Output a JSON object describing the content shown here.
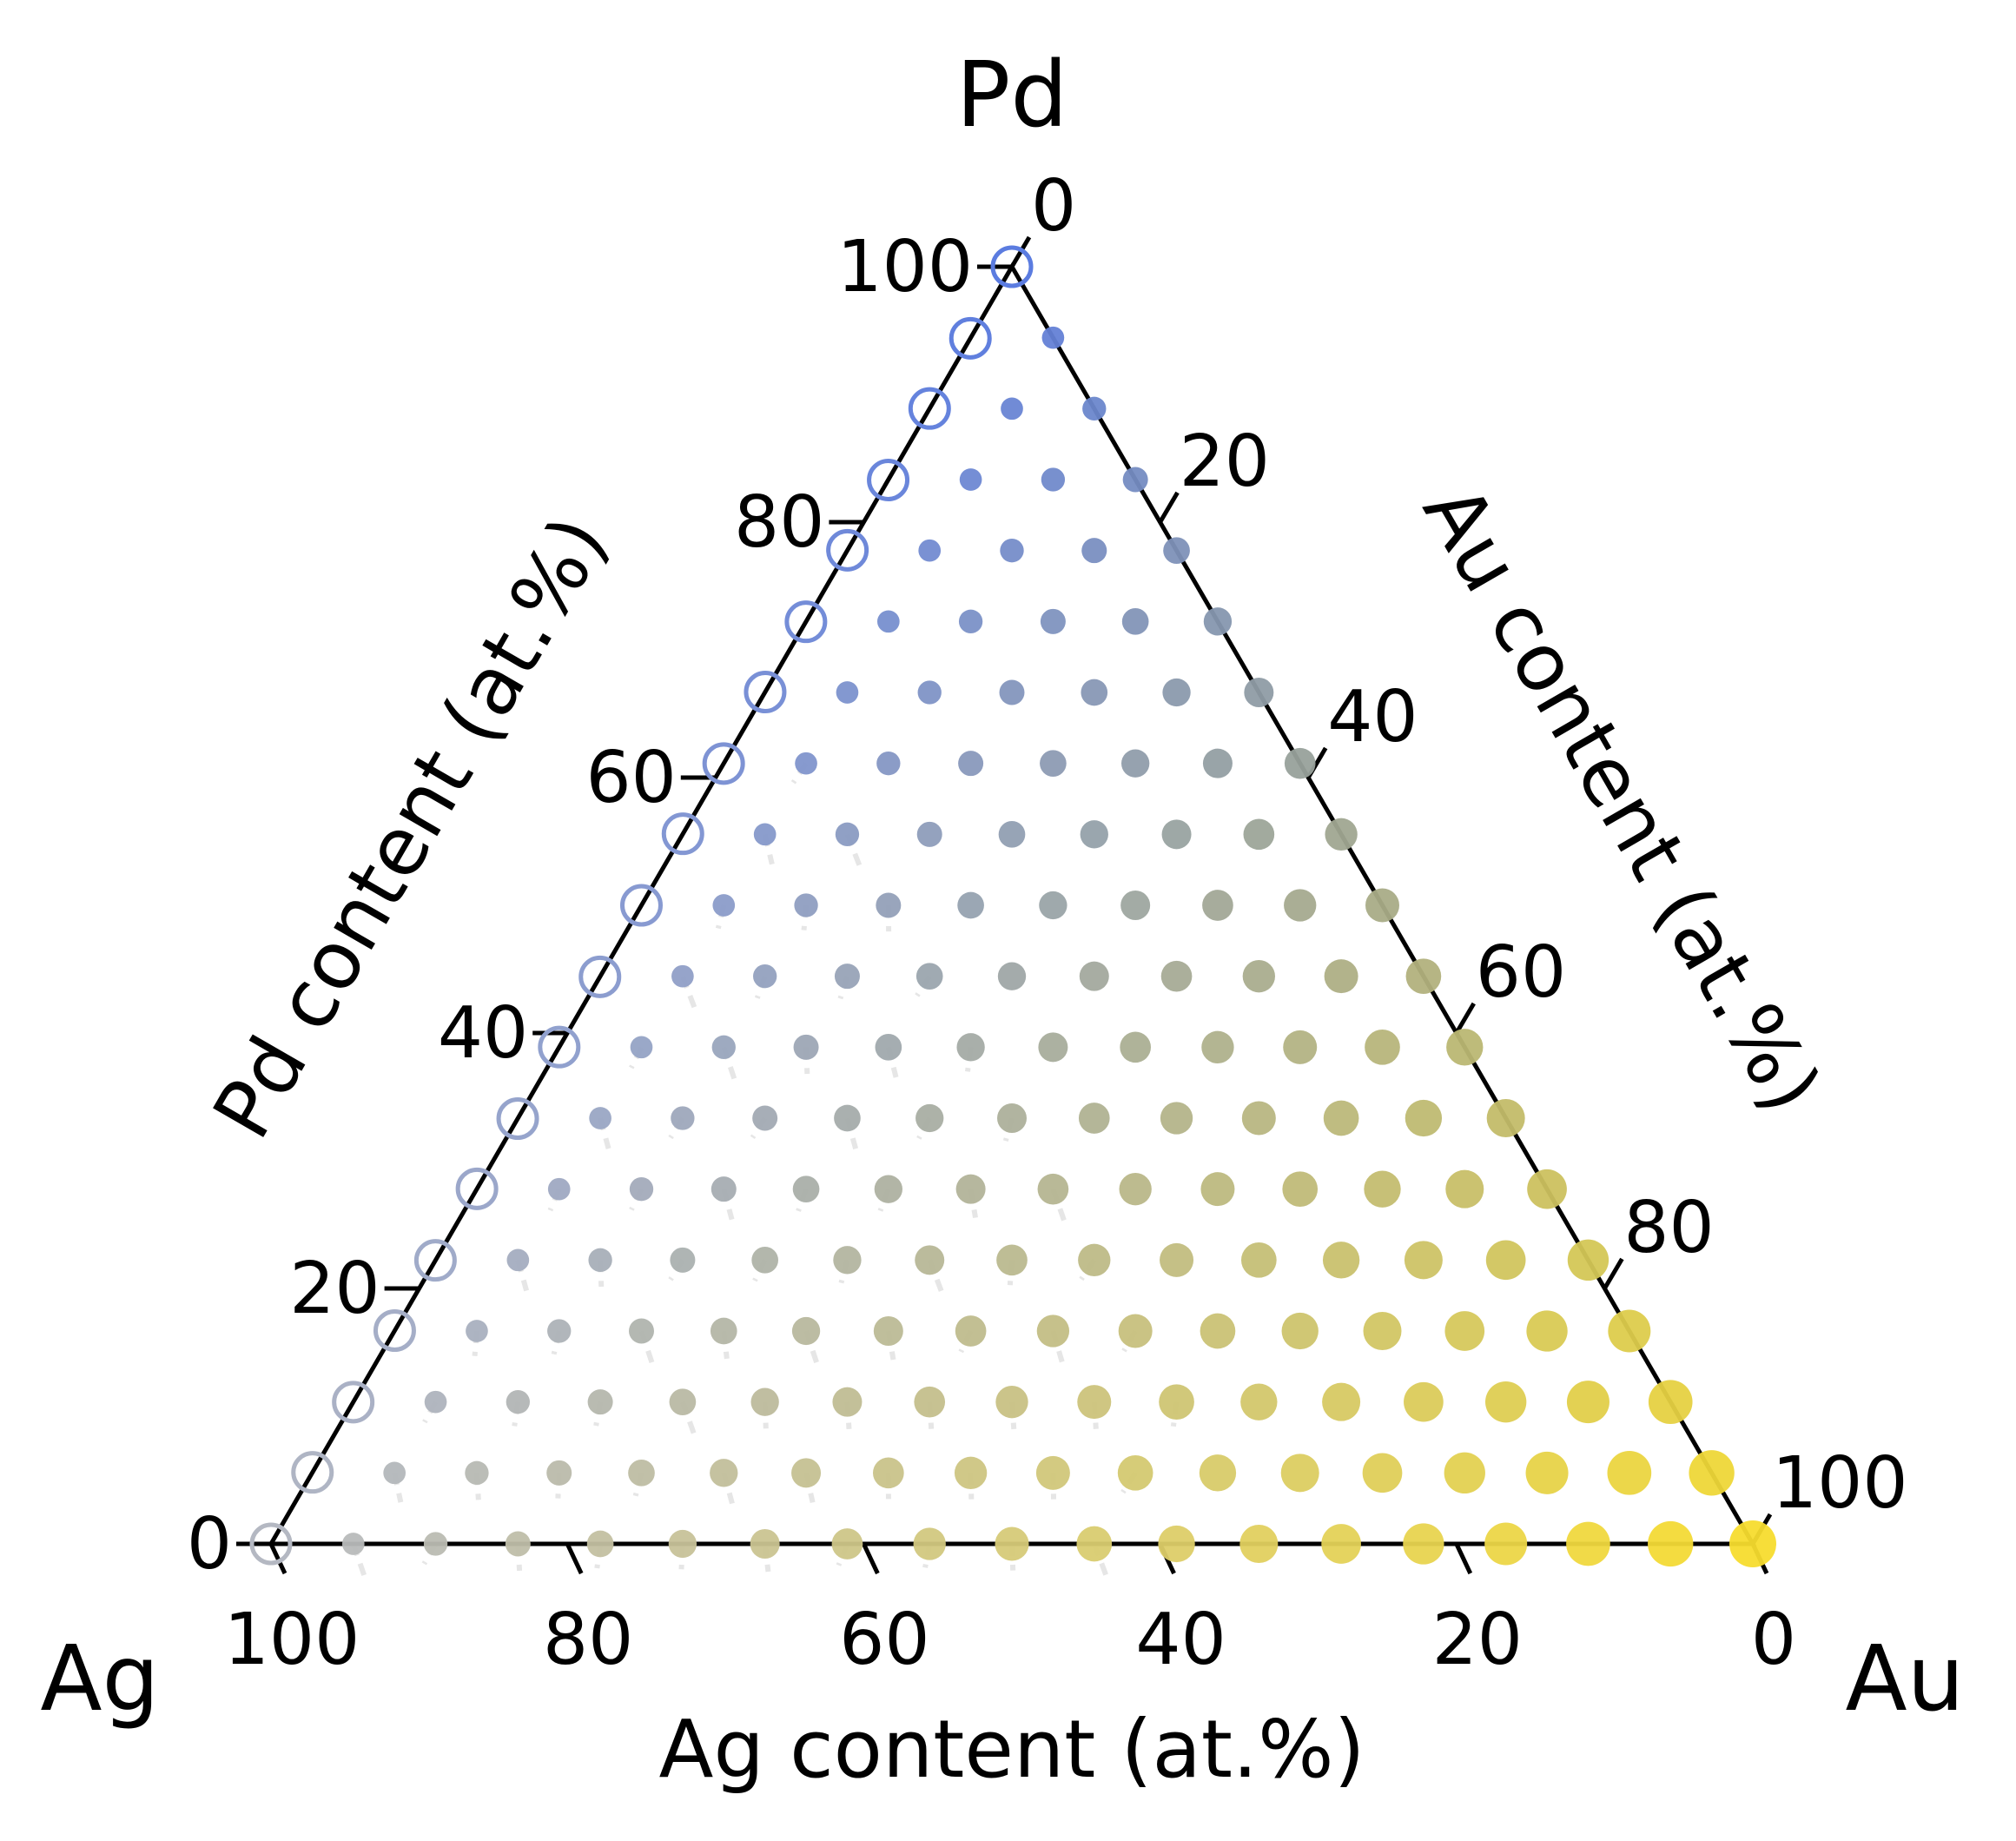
{
  "chart_data": {
    "type": "scatter",
    "subtype": "ternary",
    "corners": {
      "top": "Pd",
      "left": "Ag",
      "right": "Au"
    },
    "axes": {
      "bottom": {
        "label": "Ag content (at.%)",
        "ticks": [
          "100",
          "80",
          "60",
          "40",
          "20",
          "0"
        ],
        "tick_values": [
          100,
          80,
          60,
          40,
          20,
          0
        ]
      },
      "left": {
        "label": "Pd content (at.%)",
        "ticks": [
          "0",
          "20",
          "40",
          "60",
          "80",
          "100"
        ],
        "tick_values": [
          0,
          20,
          40,
          60,
          80,
          100
        ]
      },
      "right": {
        "label": "Au content (at.%)",
        "ticks": [
          "0",
          "20",
          "40",
          "60",
          "80",
          "100"
        ],
        "tick_values": [
          0,
          20,
          40,
          60,
          80,
          100
        ]
      }
    },
    "grid": false,
    "colormap": {
      "pd_rich": "#5b7ce0",
      "ag_rich": "#b4b8c2",
      "au_rich": "#f7dc2e"
    },
    "marker_encoding": "filled circle size and color scale with Au content; binary Ag-Pd edge compositions shown as open circles",
    "grid_step_at_pct": 5.56,
    "series": [
      {
        "name": "",
        "marker": "open-circle",
        "points": [
          {
            "pd": 100.0,
            "au": 0,
            "ag": 0.0
          },
          {
            "pd": 94.4,
            "au": 0,
            "ag": 5.6
          },
          {
            "pd": 88.9,
            "au": 0,
            "ag": 11.1
          },
          {
            "pd": 83.3,
            "au": 0,
            "ag": 16.7
          },
          {
            "pd": 77.8,
            "au": 0,
            "ag": 22.2
          },
          {
            "pd": 72.2,
            "au": 0,
            "ag": 27.8
          },
          {
            "pd": 66.7,
            "au": 0,
            "ag": 33.3
          },
          {
            "pd": 61.1,
            "au": 0,
            "ag": 38.9
          },
          {
            "pd": 55.6,
            "au": 0,
            "ag": 44.4
          },
          {
            "pd": 50.0,
            "au": 0,
            "ag": 50.0
          },
          {
            "pd": 44.4,
            "au": 0,
            "ag": 55.6
          },
          {
            "pd": 38.9,
            "au": 0,
            "ag": 61.1
          },
          {
            "pd": 33.3,
            "au": 0,
            "ag": 66.7
          },
          {
            "pd": 27.8,
            "au": 0,
            "ag": 72.2
          },
          {
            "pd": 22.2,
            "au": 0,
            "ag": 77.8
          },
          {
            "pd": 16.7,
            "au": 0,
            "ag": 83.3
          },
          {
            "pd": 11.1,
            "au": 0,
            "ag": 88.9
          },
          {
            "pd": 5.6,
            "au": 0,
            "ag": 94.4
          },
          {
            "pd": 0.0,
            "au": 0,
            "ag": 100.0
          }
        ]
      },
      {
        "name": "",
        "marker": "filled-circle",
        "note": "all ternary grid compositions with Au > 0 (step 1/18, Pd + Au + Ag = 100)"
      }
    ]
  }
}
